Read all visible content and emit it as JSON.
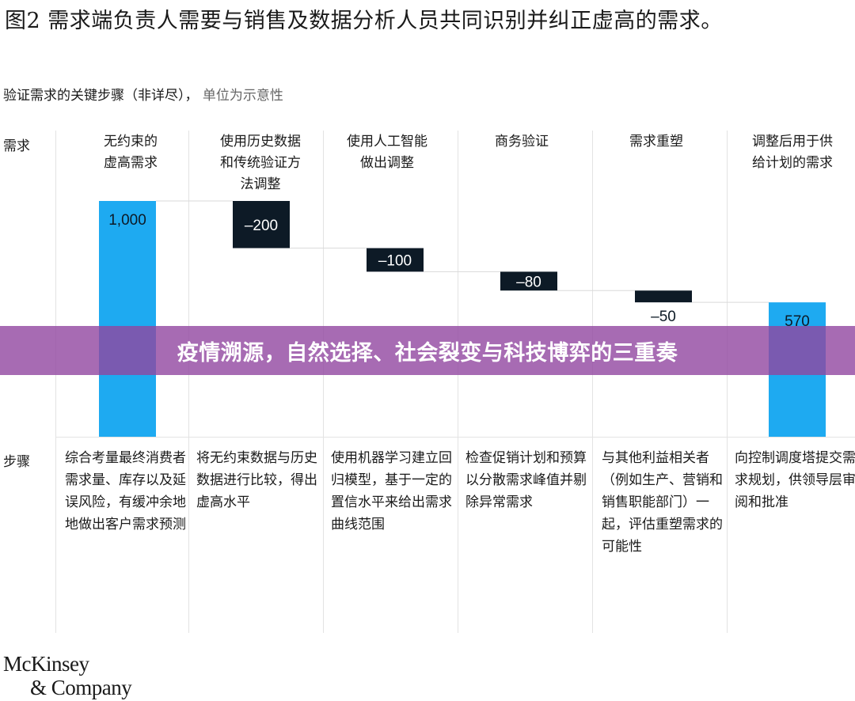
{
  "title": "图2 需求端负责人需要与销售及数据分析人员共同识别并纠正虚高的需求。",
  "subtitle": {
    "main": "验证需求的关键步骤（非详尽），",
    "unit": "单位为示意性"
  },
  "row_labels": {
    "demand": "需求",
    "steps": "步骤"
  },
  "chart_data": {
    "type": "bar",
    "subtype": "waterfall",
    "categories": [
      "无约束的\n虚高需求",
      "使用历史数据\n和传统验证方\n法调整",
      "使用人工智能\n做出调整",
      "商务验证",
      "需求重塑",
      "调整后用于供\n给计划的需求"
    ],
    "values": [
      1000,
      -200,
      -100,
      -80,
      -50,
      570
    ],
    "value_labels": [
      "1,000",
      "–200",
      "–100",
      "–80",
      "–50",
      "570"
    ],
    "bar_kinds": [
      "total",
      "delta",
      "delta",
      "delta",
      "delta",
      "total"
    ],
    "ylim": [
      0,
      1000
    ],
    "grid": false,
    "legend": "none",
    "colors": {
      "total": "#1eaaf1",
      "delta": "#0d1a26",
      "connector": "#d9d9d9"
    }
  },
  "steps": [
    "综合考量最终消费者需求量、库存以及延误风险，有缓冲余地地做出客户需求预测",
    "将无约束数据与历史数据进行比较，得出虚高水平",
    "使用机器学习建立回归模型，基于一定的置信水平来给出需求曲线范围",
    "检查促销计划和预算以分散需求峰值并剔除异常需求",
    "与其他利益相关者（例如生产、营销和销售职能部门）一起，评估重塑需求的可能性",
    "向控制调度塔提交需求规划，供领导层审阅和批准"
  ],
  "banner": "疫情溯源，自然选择、社会裂变与科技博弈的三重奏",
  "logo": {
    "line1": "McKinsey",
    "line2": "& Company"
  }
}
